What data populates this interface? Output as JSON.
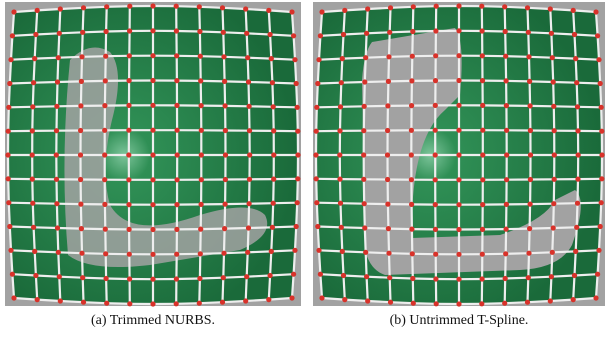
{
  "figures": [
    {
      "caption": "(a) Trimmed NURBS."
    },
    {
      "caption": "(b) Untrimmed T-Spline."
    }
  ]
}
